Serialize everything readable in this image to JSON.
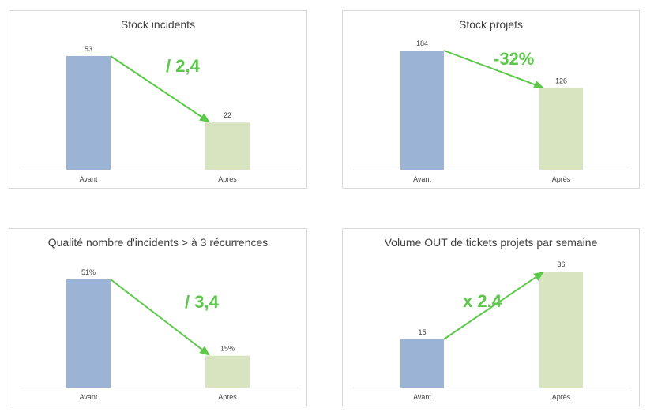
{
  "colors": {
    "avant": "#9bb3d4",
    "apres": "#d8e4bf",
    "arrow": "#5cc84a",
    "axis": "#d9d9d9",
    "text": "#404040"
  },
  "chart_data": [
    {
      "type": "bar",
      "title": "Stock incidents",
      "categories": [
        "Avant",
        "Après"
      ],
      "values": [
        53,
        22
      ],
      "value_labels": [
        "53",
        "22"
      ],
      "annotation": "/ 2,4",
      "ylim": [
        0,
        53
      ],
      "grid": false,
      "legend": "none"
    },
    {
      "type": "bar",
      "title": "Stock projets",
      "categories": [
        "Avant",
        "Après"
      ],
      "values": [
        184,
        126
      ],
      "value_labels": [
        "184",
        "126"
      ],
      "annotation": "-32%",
      "ylim": [
        0,
        184
      ],
      "grid": false,
      "legend": "none"
    },
    {
      "type": "bar",
      "title": "Qualité nombre d'incidents > à 3 récurrences",
      "categories": [
        "Avant",
        "Après"
      ],
      "values": [
        51,
        15
      ],
      "value_labels": [
        "51%",
        "15%"
      ],
      "annotation": "/ 3,4",
      "ylim": [
        0,
        51
      ],
      "grid": false,
      "legend": "none"
    },
    {
      "type": "bar",
      "title": "Volume OUT de tickets projets par semaine",
      "categories": [
        "Avant",
        "Après"
      ],
      "values": [
        15,
        36
      ],
      "value_labels": [
        "15",
        "36"
      ],
      "annotation": "x 2,4",
      "ylim": [
        0,
        36
      ],
      "grid": false,
      "legend": "none"
    }
  ]
}
